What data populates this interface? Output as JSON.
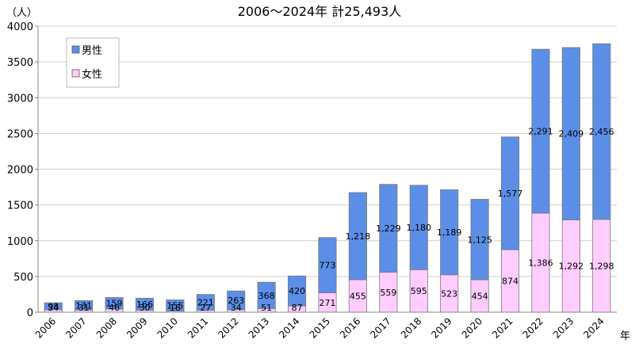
{
  "chart_data": {
    "type": "bar",
    "stacked": true,
    "title": "2006～2024年  計25,493人",
    "ylabel": "（人）",
    "xlabel": "年",
    "ylim": [
      0,
      4000
    ],
    "yticks": [
      0,
      500,
      1000,
      1500,
      2000,
      2500,
      3000,
      3500,
      4000
    ],
    "grid": true,
    "legend_position": "top-left",
    "categories": [
      "2006",
      "2007",
      "2008",
      "2009",
      "2010",
      "2011",
      "2012",
      "2013",
      "2014",
      "2015",
      "2016",
      "2017",
      "2018",
      "2019",
      "2020",
      "2021",
      "2022",
      "2023",
      "2024"
    ],
    "series": [
      {
        "name": "女性",
        "color": "#ffccff",
        "values": [
          34,
          31,
          46,
          30,
          18,
          27,
          34,
          51,
          87,
          271,
          455,
          559,
          595,
          523,
          454,
          874,
          1386,
          1292,
          1298
        ],
        "labels": [
          "34",
          "31",
          "46",
          "30",
          "18",
          "27",
          "34",
          "51",
          "87",
          "271",
          "455",
          "559",
          "595",
          "523",
          "454",
          "874",
          "1,386",
          "1,292",
          "1,298"
        ]
      },
      {
        "name": "男性",
        "color": "#5b8ee6",
        "values": [
          98,
          131,
          159,
          166,
          155,
          221,
          263,
          368,
          420,
          773,
          1218,
          1229,
          1180,
          1189,
          1125,
          1577,
          2291,
          2409,
          2456
        ],
        "labels": [
          "98",
          "131",
          "159",
          "166",
          "155",
          "221",
          "263",
          "368",
          "420",
          "773",
          "1,218",
          "1,229",
          "1,180",
          "1,189",
          "1,125",
          "1,577",
          "2,291",
          "2,409",
          "2,456"
        ]
      }
    ]
  }
}
